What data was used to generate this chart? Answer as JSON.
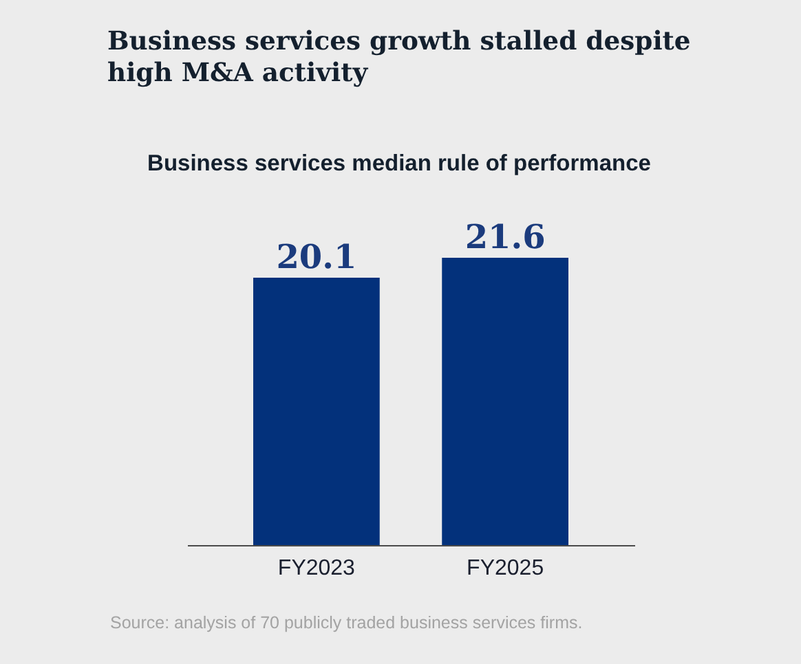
{
  "chart_data": {
    "type": "bar",
    "title": "Business services growth stalled despite high M&A activity",
    "subtitle": "Business services median rule of performance",
    "categories": [
      "FY2023",
      "FY2025"
    ],
    "values": [
      20.1,
      21.6
    ],
    "color": "#03317b",
    "data_labels": true,
    "tick_labels": "x",
    "annotations": [
      "Source: analysis of 70 publicly traded business services firms."
    ]
  }
}
